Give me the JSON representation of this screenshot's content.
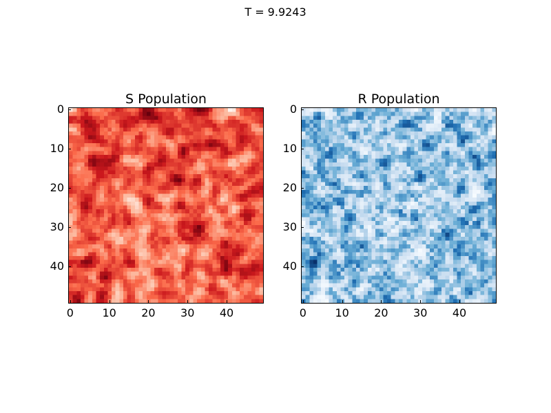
{
  "figure": {
    "suptitle": "T = 9.9243"
  },
  "chart_data": [
    {
      "type": "heatmap",
      "title": "S Population",
      "colormap": "Reds",
      "grid_size": [
        50,
        50
      ],
      "xlim": [
        0,
        49
      ],
      "ylim": [
        0,
        49
      ],
      "xticks": [
        "0",
        "10",
        "20",
        "30",
        "40"
      ],
      "yticks": [
        "0",
        "10",
        "20",
        "30",
        "40"
      ],
      "colors": [
        "#fff5f0",
        "#fcbba1",
        "#fb6a4a",
        "#cb181d",
        "#67000d"
      ],
      "seed": 7
    },
    {
      "type": "heatmap",
      "title": "R Population",
      "colormap": "Blues",
      "grid_size": [
        50,
        50
      ],
      "xlim": [
        0,
        49
      ],
      "ylim": [
        0,
        49
      ],
      "xticks": [
        "0",
        "10",
        "20",
        "30",
        "40"
      ],
      "yticks": [
        "0",
        "10",
        "20",
        "30",
        "40"
      ],
      "colors": [
        "#f7fbff",
        "#c6dbef",
        "#6baed6",
        "#2171b5",
        "#08306b"
      ],
      "seed": 13
    }
  ]
}
